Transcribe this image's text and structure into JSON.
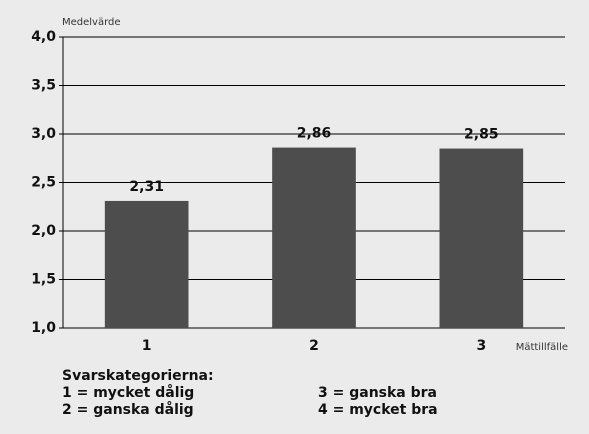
{
  "chart_data": {
    "type": "bar",
    "ylabel": "Medelvärde",
    "xlabel": "Mättillfälle",
    "categories": [
      "1",
      "2",
      "3"
    ],
    "values": [
      2.31,
      2.86,
      2.85
    ],
    "value_labels": [
      "2,31",
      "2,86",
      "2,85"
    ],
    "color": "#4d4d4d",
    "ylim": [
      1.0,
      4.0
    ],
    "yticks": [
      {
        "value": 1.0,
        "label": "1,0"
      },
      {
        "value": 1.5,
        "label": "1,5"
      },
      {
        "value": 2.0,
        "label": "2,0"
      },
      {
        "value": 2.5,
        "label": "2,5"
      },
      {
        "value": 3.0,
        "label": "3,0"
      },
      {
        "value": 3.5,
        "label": "3,5"
      },
      {
        "value": 4.0,
        "label": "4,0"
      }
    ],
    "grid": true
  },
  "notes": {
    "title": "Svarskategorierna:",
    "items": [
      "1 = mycket dålig",
      "2 = ganska dålig",
      "3 = ganska bra",
      "4 = mycket bra"
    ]
  }
}
